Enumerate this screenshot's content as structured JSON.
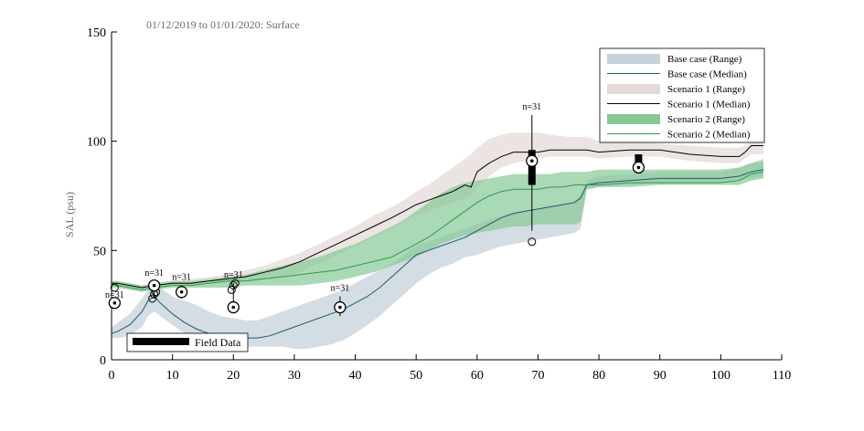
{
  "chart_data": {
    "type": "line",
    "title": "01/12/2019 to 01/01/2020: Surface",
    "xlabel": "",
    "ylabel": "SAL (psu)",
    "xlim": [
      0,
      110
    ],
    "ylim": [
      0,
      150
    ],
    "xticks": [
      "0",
      "10",
      "20",
      "30",
      "40",
      "50",
      "60",
      "70",
      "80",
      "90",
      "100",
      "110"
    ],
    "yticks": [
      "0",
      "50",
      "100",
      "150"
    ],
    "grid": false,
    "legend_position": "top-right",
    "legend": [
      {
        "label": "Base case (Range)",
        "kind": "band",
        "color": "#c6d2da"
      },
      {
        "label": "Base case (Median)",
        "kind": "line",
        "color": "#1e5a6e"
      },
      {
        "label": "Scenario 1 (Range)",
        "kind": "band",
        "color": "#e3d9d5"
      },
      {
        "label": "Scenario 1 (Median)",
        "kind": "line",
        "color": "#000000"
      },
      {
        "label": "Scenario 2 (Range)",
        "kind": "band",
        "color": "#86c995"
      },
      {
        "label": "Scenario 2 (Median)",
        "kind": "line",
        "color": "#2f9a4e"
      }
    ],
    "series": [
      {
        "name": "Base case",
        "x": [
          0,
          1,
          3,
          5,
          6,
          7,
          8,
          10,
          12,
          14,
          16,
          18,
          20,
          22,
          24,
          26,
          28,
          30,
          32,
          34,
          36,
          38,
          40,
          42,
          44,
          46,
          48,
          50,
          52,
          54,
          56,
          58,
          60,
          62,
          64,
          66,
          68,
          70,
          72,
          74,
          76,
          77,
          78,
          80,
          85,
          90,
          95,
          100,
          103,
          105,
          107
        ],
        "median": [
          12,
          13,
          16,
          22,
          27,
          29,
          26,
          21,
          17,
          14,
          12,
          11,
          10,
          10,
          10,
          11,
          13,
          15,
          17,
          19,
          21,
          23,
          26,
          29,
          33,
          38,
          43,
          48,
          50,
          52,
          54,
          56,
          59,
          62,
          65,
          67,
          68,
          69,
          70,
          71,
          72,
          74,
          80,
          81,
          82,
          83,
          83,
          83,
          84,
          86,
          87
        ],
        "upper": [
          15,
          17,
          21,
          28,
          32,
          35,
          33,
          29,
          27,
          25,
          22,
          20,
          19,
          18,
          18,
          20,
          22,
          24,
          26,
          28,
          30,
          32,
          35,
          38,
          41,
          44,
          48,
          52,
          54,
          56,
          58,
          60,
          62,
          64,
          66,
          67,
          68,
          69,
          70,
          71,
          72,
          76,
          82,
          84,
          85,
          86,
          86,
          86,
          88,
          90,
          92
        ],
        "lower": [
          10,
          10,
          11,
          15,
          20,
          22,
          20,
          16,
          12,
          9,
          8,
          7,
          6,
          6,
          6,
          6,
          6,
          5,
          5,
          6,
          7,
          9,
          12,
          16,
          20,
          25,
          30,
          35,
          39,
          42,
          44,
          47,
          48,
          50,
          52,
          53,
          54,
          55,
          56,
          57,
          58,
          60,
          78,
          79,
          80,
          81,
          81,
          81,
          82,
          83,
          84
        ]
      },
      {
        "name": "Scenario 1",
        "x": [
          0,
          1,
          3,
          5,
          7,
          10,
          13,
          16,
          19,
          22,
          25,
          28,
          31,
          34,
          37,
          40,
          43,
          46,
          48,
          50,
          52,
          54,
          56,
          58,
          59,
          60,
          62,
          64,
          66,
          68,
          70,
          72,
          75,
          78,
          80,
          85,
          90,
          95,
          100,
          103,
          104,
          105,
          107
        ],
        "median": [
          35,
          35,
          34,
          33,
          34,
          35,
          35,
          36,
          37,
          38,
          40,
          42,
          45,
          49,
          53,
          57,
          61,
          65,
          68,
          71,
          73,
          75,
          77,
          80,
          79,
          86,
          90,
          93,
          95,
          95,
          95,
          96,
          96,
          96,
          95,
          96,
          96,
          94,
          93,
          93,
          95,
          98,
          98
        ],
        "upper": [
          36,
          36,
          35,
          34,
          35,
          36,
          37,
          38,
          39,
          41,
          43,
          46,
          49,
          53,
          57,
          61,
          66,
          70,
          73,
          77,
          80,
          84,
          88,
          92,
          94,
          97,
          101,
          103,
          104,
          104,
          104,
          103,
          102,
          102,
          100,
          100,
          99,
          98,
          97,
          97,
          98,
          100,
          100
        ],
        "lower": [
          34,
          34,
          33,
          32,
          33,
          34,
          34,
          35,
          35,
          36,
          37,
          38,
          40,
          44,
          48,
          52,
          56,
          60,
          63,
          66,
          68,
          70,
          72,
          74,
          75,
          79,
          84,
          88,
          90,
          91,
          92,
          93,
          93,
          93,
          92,
          93,
          93,
          91,
          90,
          90,
          92,
          94,
          94
        ]
      },
      {
        "name": "Scenario 2",
        "x": [
          0,
          1,
          3,
          5,
          7,
          10,
          13,
          16,
          19,
          22,
          25,
          28,
          31,
          34,
          37,
          40,
          43,
          46,
          48,
          50,
          52,
          54,
          56,
          58,
          60,
          62,
          64,
          66,
          68,
          70,
          72,
          74,
          76,
          77,
          78,
          80,
          85,
          90,
          95,
          100,
          103,
          105,
          107
        ],
        "median": [
          34,
          34,
          33,
          32,
          33,
          34,
          34,
          35,
          36,
          36,
          37,
          38,
          39,
          40,
          41,
          43,
          45,
          47,
          50,
          53,
          56,
          60,
          64,
          68,
          72,
          75,
          77,
          78,
          78,
          78,
          79,
          79,
          80,
          80,
          80,
          80,
          81,
          81,
          81,
          81,
          82,
          85,
          86
        ],
        "upper": [
          36,
          36,
          35,
          34,
          35,
          36,
          36,
          37,
          38,
          39,
          41,
          43,
          45,
          47,
          50,
          53,
          57,
          61,
          64,
          68,
          72,
          76,
          79,
          81,
          82,
          83,
          84,
          85,
          85,
          85,
          85,
          86,
          86,
          86,
          86,
          87,
          87,
          87,
          87,
          87,
          88,
          90,
          91
        ],
        "lower": [
          33,
          33,
          32,
          31,
          32,
          33,
          33,
          33,
          33,
          34,
          34,
          34,
          34,
          35,
          36,
          38,
          40,
          43,
          45,
          47,
          50,
          53,
          55,
          57,
          58,
          59,
          60,
          61,
          61,
          62,
          62,
          62,
          62,
          63,
          78,
          79,
          79,
          80,
          80,
          80,
          80,
          82,
          83
        ]
      }
    ],
    "field_data": {
      "legend_label": "Field Data",
      "boxes": [
        {
          "x": 0.5,
          "median": 26,
          "mean": 26,
          "whisker_low": 26,
          "whisker_high": 26,
          "box_low": 26,
          "box_high": 26,
          "outliers": [
            33
          ],
          "n_label": "n=31"
        },
        {
          "x": 7,
          "median": 34,
          "mean": 34,
          "whisker_low": 28,
          "whisker_high": 36,
          "box_low": 32,
          "box_high": 35,
          "outliers": [
            28,
            30,
            31
          ],
          "n_label": "n=31"
        },
        {
          "x": 11.5,
          "median": 31,
          "mean": 31,
          "whisker_low": 28,
          "whisker_high": 34,
          "box_low": 30,
          "box_high": 32,
          "outliers": [],
          "n_label": "n=31"
        },
        {
          "x": 20,
          "median": 24,
          "mean": 24,
          "whisker_low": 24,
          "whisker_high": 35,
          "box_low": 24,
          "box_high": 24,
          "outliers": [
            32,
            34,
            35
          ],
          "n_label": "n=31"
        },
        {
          "x": 37.5,
          "median": 24,
          "mean": 24,
          "whisker_low": 20,
          "whisker_high": 29,
          "box_low": 22,
          "box_high": 26,
          "outliers": [],
          "n_label": "n=31"
        },
        {
          "x": 69,
          "median": 91,
          "mean": 91,
          "whisker_low": 59,
          "whisker_high": 112,
          "box_low": 80,
          "box_high": 96,
          "outliers": [
            54
          ],
          "n_label": "n=31"
        },
        {
          "x": 86.5,
          "median": 88,
          "mean": 88,
          "whisker_low": 88,
          "whisker_high": 94,
          "box_low": 88,
          "box_high": 94,
          "outliers": [],
          "n_label": ""
        }
      ]
    }
  }
}
